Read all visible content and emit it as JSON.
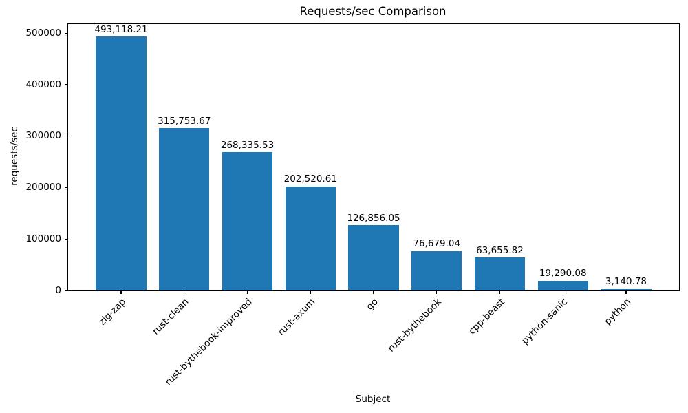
{
  "chart_data": {
    "type": "bar",
    "title": "Requests/sec Comparison",
    "xlabel": "Subject",
    "ylabel": "requests/sec",
    "categories": [
      "zig-zap",
      "rust-clean",
      "rust-bythebook-improved",
      "rust-axum",
      "go",
      "rust-bythebook",
      "cpp-beast",
      "python-sanic",
      "python"
    ],
    "values": [
      493118.21,
      315753.67,
      268335.53,
      202520.61,
      126856.05,
      76679.04,
      63655.82,
      19290.08,
      3140.78
    ],
    "value_labels": [
      "493,118.21",
      "315,753.67",
      "268,335.53",
      "202,520.61",
      "126,856.05",
      "76,679.04",
      "63,655.82",
      "19,290.08",
      "3,140.78"
    ],
    "y_ticks": [
      0,
      100000,
      200000,
      300000,
      400000,
      500000
    ],
    "y_tick_labels": [
      "0",
      "100000",
      "200000",
      "300000",
      "400000",
      "500000"
    ],
    "ylim": [
      0,
      517774
    ],
    "grid": false,
    "legend": "none",
    "bar_color": "#1f77b4",
    "text_color": "#000000",
    "background_color": "#ffffff"
  }
}
